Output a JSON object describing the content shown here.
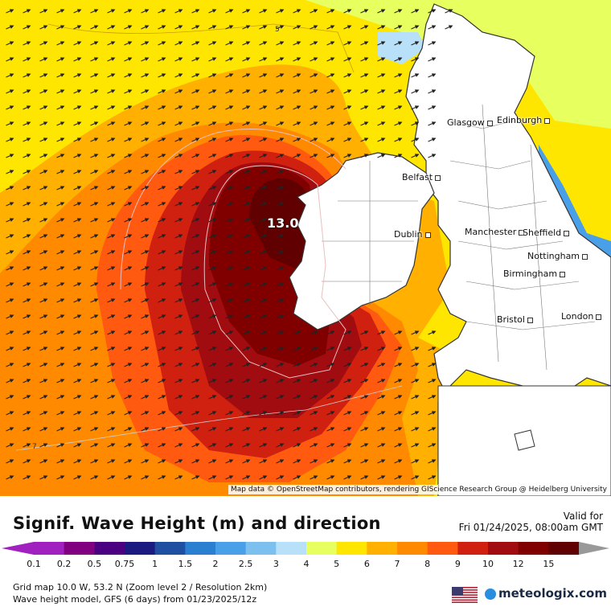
{
  "map": {
    "max_value_label": "13.0",
    "contour_labels": [
      "5",
      "7"
    ],
    "attribution": "Map data © OpenStreetMap contributors, rendering GIScience Research Group @ Heidelberg University",
    "cities": [
      {
        "name": "Glasgow"
      },
      {
        "name": "Edinburgh"
      },
      {
        "name": "Belfast"
      },
      {
        "name": "Dublin"
      },
      {
        "name": "Manchester"
      },
      {
        "name": "Sheffield"
      },
      {
        "name": "Nottingham"
      },
      {
        "name": "Birmingham"
      },
      {
        "name": "Bristol"
      },
      {
        "name": "London"
      }
    ],
    "wave_direction_arrows": "east-northeast",
    "colors": {
      "land": "#ffffff",
      "border": "#333333"
    }
  },
  "footer": {
    "title": "Signif. Wave Height (m) and direction",
    "valid_label": "Valid for",
    "valid_time": "Fri 01/24/2025, 08:00am GMT",
    "info_line1": "Grid map 10.0 W, 53.2 N (Zoom level 2 / Resolution 2km)",
    "info_line2": "Wave height model, GFS (6 days) from  01/23/2025/12z",
    "brand": "meteologix.com",
    "flag_icon": "us-flag-icon"
  },
  "legend": {
    "ticks": [
      "0.1",
      "0.2",
      "0.5",
      "0.75",
      "1",
      "1.5",
      "2",
      "2.5",
      "3",
      "4",
      "5",
      "6",
      "7",
      "8",
      "9",
      "10",
      "12",
      "15"
    ],
    "colors": [
      "#a020c0",
      "#800080",
      "#4b0082",
      "#1a1a80",
      "#1f4fa0",
      "#2a7fd0",
      "#4aa0e8",
      "#7cc0f0",
      "#b8e0f8",
      "#e8ff60",
      "#ffe600",
      "#ffb000",
      "#ff8a00",
      "#ff5a10",
      "#d02010",
      "#a00c10",
      "#800000",
      "#600000"
    ]
  }
}
